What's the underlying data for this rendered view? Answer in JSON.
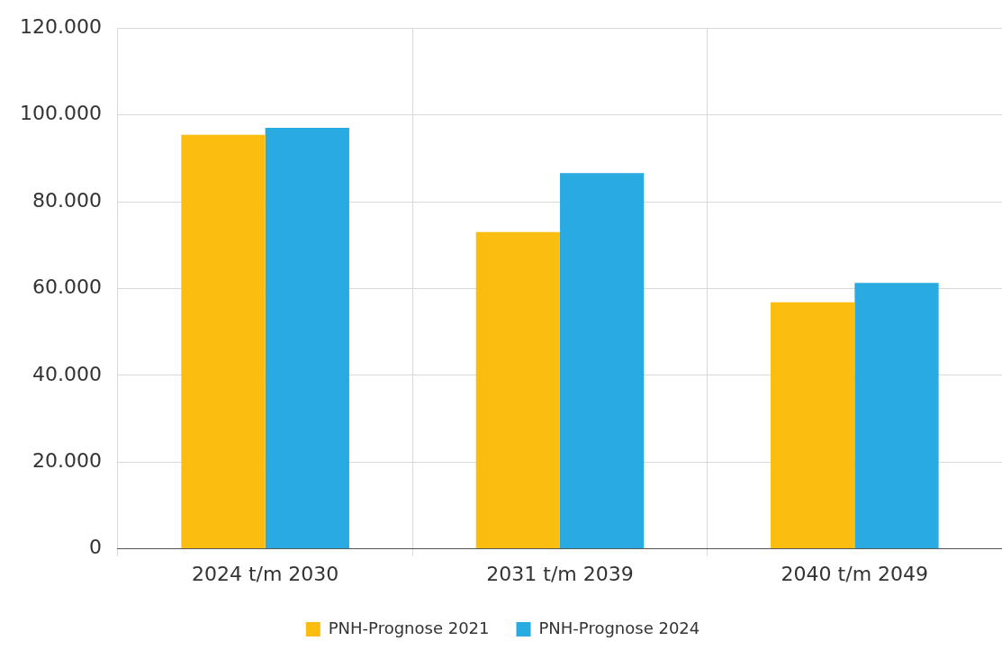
{
  "chart_data": {
    "type": "bar",
    "categories": [
      "2024 t/m 2030",
      "2031 t/m 2039",
      "2040 t/m 2049"
    ],
    "series": [
      {
        "name": "PNH-Prognose 2021",
        "color": "#fbbd0f",
        "values": [
          95400,
          73000,
          56800
        ]
      },
      {
        "name": "PNH-Prognose 2024",
        "color": "#29abe2",
        "values": [
          97000,
          86600,
          61300
        ]
      }
    ],
    "ylim": [
      0,
      120000
    ],
    "yticks": [
      0,
      {
        "value": 20000,
        "label": "20.000"
      },
      {
        "value": 40000,
        "label": "40.000"
      },
      {
        "value": 60000,
        "label": "60.000"
      },
      {
        "value": 80000,
        "label": "80.000"
      },
      {
        "value": 100000,
        "label": "100.000"
      },
      {
        "value": 120000,
        "label": "120.000"
      }
    ],
    "grid": true,
    "legend": "bottom"
  }
}
